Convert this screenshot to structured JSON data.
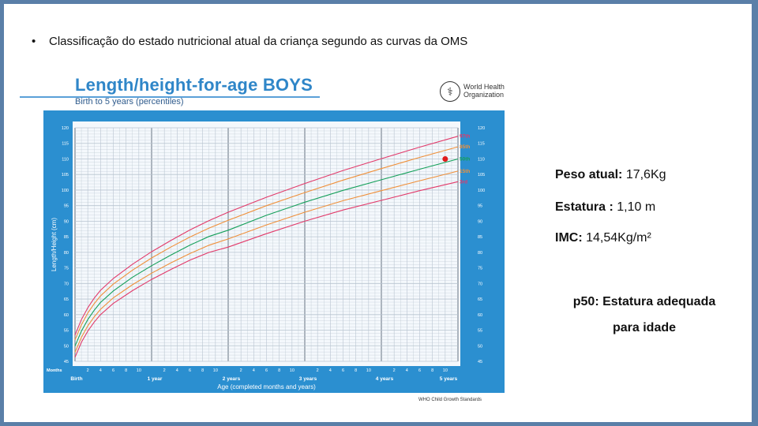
{
  "slide": {
    "bullet_char": "•",
    "bullet_text": "Classificação do estado nutricional atual da criança segundo as curvas da OMS"
  },
  "chart_header": {
    "title": "Length/height-for-age BOYS",
    "subtitle": "Birth to 5 years (percentiles)",
    "org_logo_icon": "who-globe-icon",
    "org_name_line1": "World Health",
    "org_name_line2": "Organization",
    "footer_note": "WHO Child Growth Standards"
  },
  "info_panel": {
    "weight_label": "Peso atual:",
    "weight_value": "17,6Kg",
    "height_label": "Estatura :",
    "height_value": "1,10 m",
    "bmi_label": "IMC:",
    "bmi_value": "14,54Kg/m²",
    "conclusion_line1": "p50: Estatura adequada",
    "conclusion_line2": "para idade"
  },
  "colors": {
    "page_border": "#5a7fa8",
    "chart_bg": "#ffffff",
    "plot_bg": "#f4f8fc",
    "band_blue": "#2b8fd0",
    "grid": "#b8c4d0",
    "p97": "#e23a6a",
    "p85": "#f0903a",
    "p50": "#15a05a",
    "p15": "#f0903a",
    "p3": "#e23a6a",
    "marker": "#e01b1b",
    "title_blue": "#2f86c8"
  },
  "chart_data": {
    "type": "line",
    "title": "Length/height-for-age BOYS",
    "subtitle": "Birth to 5 years (percentiles)",
    "xlabel": "Age (completed months and years)",
    "ylabel": "Length/Height (cm)",
    "xlim": [
      0,
      60
    ],
    "ylim": [
      45,
      120
    ],
    "y_ticks": [
      45,
      50,
      55,
      60,
      65,
      70,
      75,
      80,
      85,
      90,
      95,
      100,
      105,
      110,
      115,
      120
    ],
    "x_month_row_label": "Months",
    "x_month_ticks": [
      {
        "m": 2,
        "label": "2"
      },
      {
        "m": 4,
        "label": "4"
      },
      {
        "m": 6,
        "label": "6"
      },
      {
        "m": 8,
        "label": "8"
      },
      {
        "m": 10,
        "label": "10"
      },
      {
        "m": 14,
        "label": "2"
      },
      {
        "m": 16,
        "label": "4"
      },
      {
        "m": 18,
        "label": "6"
      },
      {
        "m": 20,
        "label": "8"
      },
      {
        "m": 22,
        "label": "10"
      },
      {
        "m": 26,
        "label": "2"
      },
      {
        "m": 28,
        "label": "4"
      },
      {
        "m": 30,
        "label": "6"
      },
      {
        "m": 32,
        "label": "8"
      },
      {
        "m": 34,
        "label": "10"
      },
      {
        "m": 38,
        "label": "2"
      },
      {
        "m": 40,
        "label": "4"
      },
      {
        "m": 42,
        "label": "6"
      },
      {
        "m": 44,
        "label": "8"
      },
      {
        "m": 46,
        "label": "10"
      },
      {
        "m": 50,
        "label": "2"
      },
      {
        "m": 52,
        "label": "4"
      },
      {
        "m": 54,
        "label": "6"
      },
      {
        "m": 56,
        "label": "8"
      },
      {
        "m": 58,
        "label": "10"
      }
    ],
    "x_year_ticks": [
      {
        "m": 0,
        "label": "Birth"
      },
      {
        "m": 12,
        "label": "1 year"
      },
      {
        "m": 24,
        "label": "2 years"
      },
      {
        "m": 36,
        "label": "3 years"
      },
      {
        "m": 48,
        "label": "4 years"
      },
      {
        "m": 60,
        "label": "5 years"
      }
    ],
    "x": [
      0,
      1,
      2,
      3,
      4,
      6,
      9,
      12,
      15,
      18,
      21,
      24,
      30,
      36,
      42,
      48,
      54,
      60
    ],
    "series": [
      {
        "name": "97th",
        "color_key": "p97",
        "values": [
          53.4,
          58.4,
          62.2,
          65.3,
          67.8,
          71.6,
          76.2,
          80.2,
          83.8,
          87.2,
          90.2,
          92.9,
          97.7,
          102.1,
          106.3,
          110.1,
          113.8,
          117.3
        ]
      },
      {
        "name": "85th",
        "color_key": "p85",
        "values": [
          51.9,
          56.7,
          60.5,
          63.5,
          66.0,
          69.8,
          74.3,
          78.2,
          81.7,
          84.9,
          87.8,
          90.3,
          95.0,
          99.2,
          103.2,
          106.9,
          110.5,
          113.9
        ]
      },
      {
        "name": "50th",
        "color_key": "p50",
        "values": [
          49.9,
          54.7,
          58.4,
          61.4,
          63.9,
          67.6,
          72.0,
          75.7,
          79.1,
          82.3,
          85.1,
          87.1,
          91.9,
          96.1,
          99.9,
          103.3,
          106.7,
          110.0
        ]
      },
      {
        "name": "15th",
        "color_key": "p15",
        "values": [
          47.9,
          52.7,
          56.4,
          59.3,
          61.7,
          65.4,
          69.6,
          73.3,
          76.6,
          79.6,
          82.3,
          84.3,
          88.8,
          92.9,
          96.6,
          99.8,
          103.0,
          106.1
        ]
      },
      {
        "name": "3rd",
        "color_key": "p3",
        "values": [
          46.3,
          51.1,
          54.7,
          57.6,
          60.0,
          63.6,
          67.7,
          71.3,
          74.5,
          77.5,
          80.0,
          81.7,
          86.0,
          90.0,
          93.6,
          96.7,
          99.8,
          102.7
        ]
      }
    ],
    "marker": {
      "x": 58,
      "y": 110
    },
    "grid": true,
    "legend": "right-end labels"
  }
}
